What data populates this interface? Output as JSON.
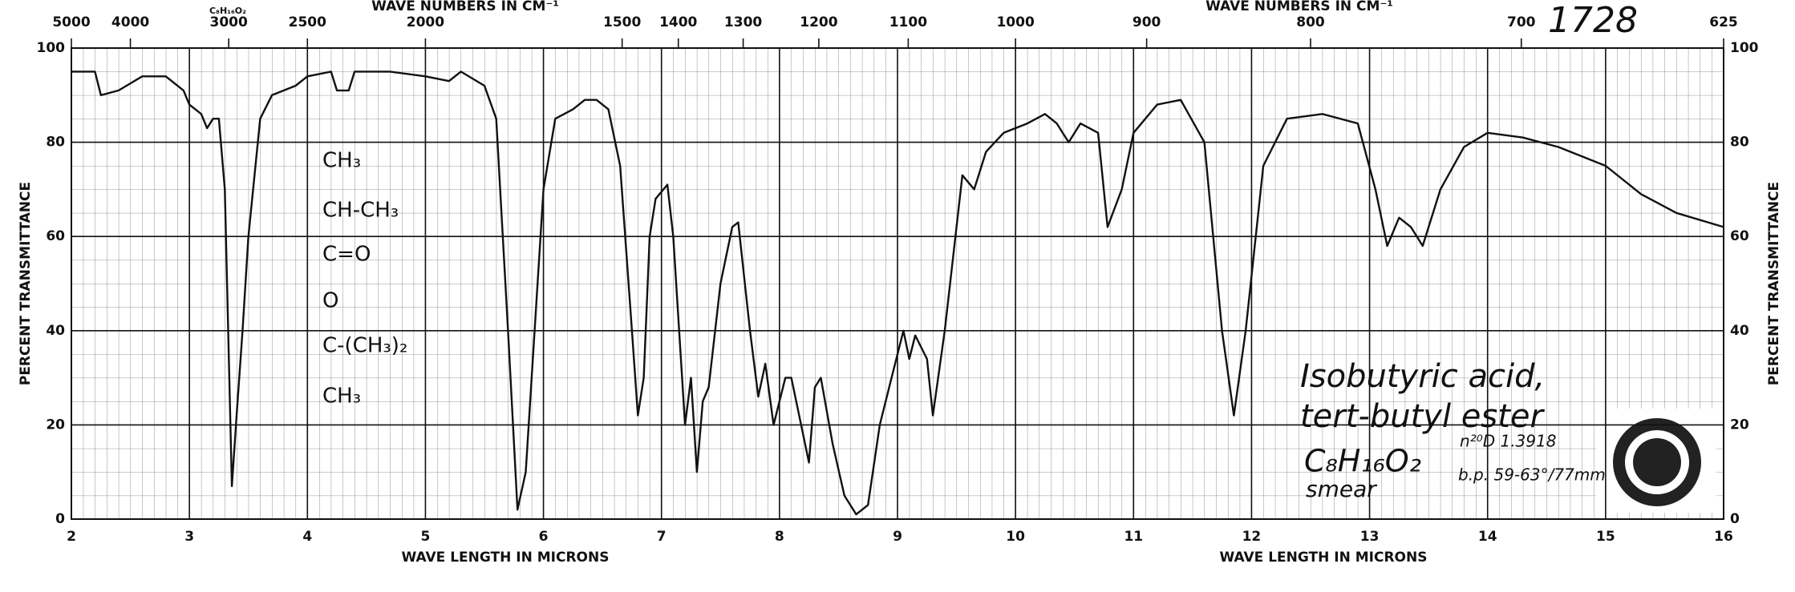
{
  "chart_data": {
    "type": "line",
    "x_label": "WAVE LENGTH IN MICRONS",
    "x2_label": "WAVE NUMBERS IN CM⁻¹",
    "y_label": "PERCENT TRANSMITTANCE",
    "xlim": [
      2,
      16
    ],
    "xticks": [
      2,
      3,
      4,
      5,
      6,
      7,
      8,
      9,
      10,
      11,
      12,
      13,
      14,
      15,
      16
    ],
    "x2ticks": [
      5000,
      4000,
      3000,
      2500,
      2000,
      1500,
      1400,
      1300,
      1200,
      1100,
      1000,
      900,
      800,
      700,
      625
    ],
    "ylim": [
      0,
      100
    ],
    "yticks": [
      0,
      20,
      40,
      60,
      80,
      100
    ],
    "grid": true,
    "color": "#111111",
    "x": [
      2.0,
      2.2,
      2.25,
      2.4,
      2.6,
      2.8,
      2.95,
      3.0,
      3.1,
      3.15,
      3.2,
      3.25,
      3.3,
      3.36,
      3.4,
      3.45,
      3.5,
      3.6,
      3.7,
      3.9,
      4.0,
      4.2,
      4.25,
      4.35,
      4.4,
      4.7,
      5.0,
      5.2,
      5.3,
      5.5,
      5.6,
      5.7,
      5.78,
      5.85,
      6.0,
      6.1,
      6.25,
      6.35,
      6.45,
      6.55,
      6.65,
      6.75,
      6.8,
      6.85,
      6.9,
      6.95,
      7.05,
      7.1,
      7.2,
      7.25,
      7.3,
      7.35,
      7.4,
      7.5,
      7.6,
      7.65,
      7.75,
      7.82,
      7.88,
      7.95,
      8.05,
      8.1,
      8.2,
      8.25,
      8.3,
      8.35,
      8.45,
      8.55,
      8.65,
      8.75,
      8.85,
      8.95,
      9.05,
      9.1,
      9.15,
      9.25,
      9.3,
      9.4,
      9.55,
      9.65,
      9.75,
      9.9,
      10.1,
      10.25,
      10.35,
      10.45,
      10.55,
      10.7,
      10.78,
      10.9,
      11.0,
      11.2,
      11.4,
      11.6,
      11.75,
      11.85,
      11.95,
      12.1,
      12.3,
      12.6,
      12.9,
      13.05,
      13.15,
      13.25,
      13.35,
      13.45,
      13.6,
      13.8,
      14.0,
      14.3,
      14.6,
      15.0,
      15.3,
      15.6,
      16.0
    ],
    "values": [
      95,
      95,
      90,
      91,
      94,
      94,
      91,
      88,
      86,
      83,
      85,
      85,
      70,
      7,
      22,
      40,
      60,
      85,
      90,
      92,
      94,
      95,
      91,
      91,
      95,
      95,
      94,
      93,
      95,
      92,
      85,
      40,
      2,
      10,
      70,
      85,
      87,
      89,
      89,
      87,
      75,
      40,
      22,
      30,
      60,
      68,
      71,
      60,
      20,
      30,
      10,
      25,
      28,
      50,
      62,
      63,
      40,
      26,
      33,
      20,
      30,
      30,
      18,
      12,
      28,
      30,
      16,
      5,
      1,
      3,
      20,
      30,
      40,
      34,
      39,
      34,
      22,
      40,
      73,
      70,
      78,
      82,
      84,
      86,
      84,
      80,
      84,
      82,
      62,
      70,
      82,
      88,
      89,
      80,
      40,
      22,
      40,
      75,
      85,
      86,
      84,
      70,
      58,
      64,
      62,
      58,
      70,
      79,
      82,
      81,
      79,
      75,
      69,
      65,
      62
    ],
    "annotations": {
      "header_formula": "C₈H₁₆O₂",
      "structure": [
        "CH₃",
        "CH-CH₃",
        "C=O",
        "O",
        "C-(CH₃)₂",
        "CH₃"
      ],
      "sample_number": "1728",
      "sample_name": [
        "Isobutyric acid,",
        "tert-butyl ester"
      ],
      "formula": "C₈H₁₆O₂",
      "refractive_index": "n²⁰D 1.3918",
      "boiling_point": "b.p. 59-63°/77mm",
      "phase": "smear"
    }
  }
}
